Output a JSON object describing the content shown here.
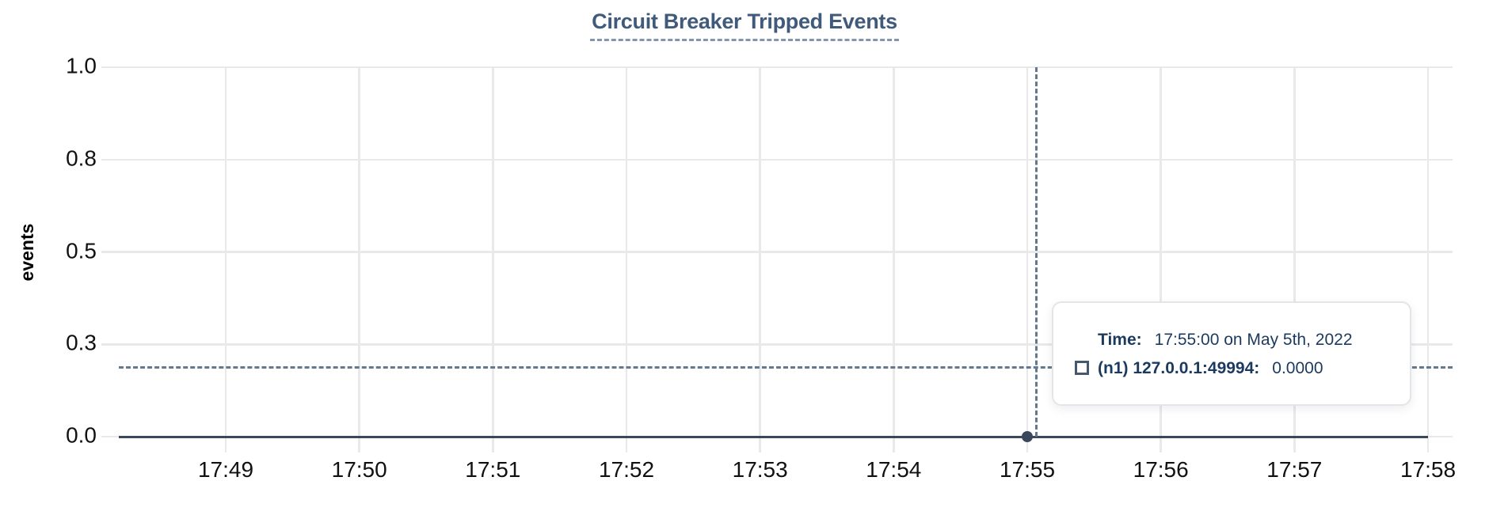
{
  "header": {
    "title": "Circuit Breaker Tripped Events"
  },
  "chart_data": {
    "type": "line",
    "title": "Circuit Breaker Tripped Events",
    "xlabel": "",
    "ylabel": "events",
    "categories": [
      "17:49",
      "17:50",
      "17:51",
      "17:52",
      "17:53",
      "17:54",
      "17:55",
      "17:56",
      "17:57",
      "17:58"
    ],
    "series": [
      {
        "name": "(n1) 127.0.0.1:49994",
        "color": "#39485c",
        "marker": "square-outline",
        "values": [
          0,
          0,
          0,
          0,
          0,
          0,
          0,
          0,
          0,
          0
        ]
      }
    ],
    "ylim": [
      0,
      1.0
    ],
    "ytick_values": [
      0,
      0.25,
      0.5,
      0.75,
      1.0
    ],
    "ytick_labels": [
      "0.0",
      "0.3",
      "0.5",
      "0.8",
      "1.0"
    ],
    "grid": "on",
    "legend_position": "none",
    "crosshair": {
      "x_category": "17:55",
      "y_value": 0.19
    },
    "highlighted_point": {
      "x": "17:55",
      "y": 0.0
    }
  },
  "tooltip": {
    "time_label": "Time:",
    "time_value": "17:55:00 on May 5th, 2022",
    "series_label": "(n1) 127.0.0.1:49994:",
    "series_value": "0.0000"
  },
  "colors": {
    "title": "#3f5a7a",
    "grid": "#e9e9e9",
    "series": "#39485c",
    "crosshair": "#64798e",
    "tooltip_text": "#1b3a5f",
    "axis_label": "#111111"
  }
}
